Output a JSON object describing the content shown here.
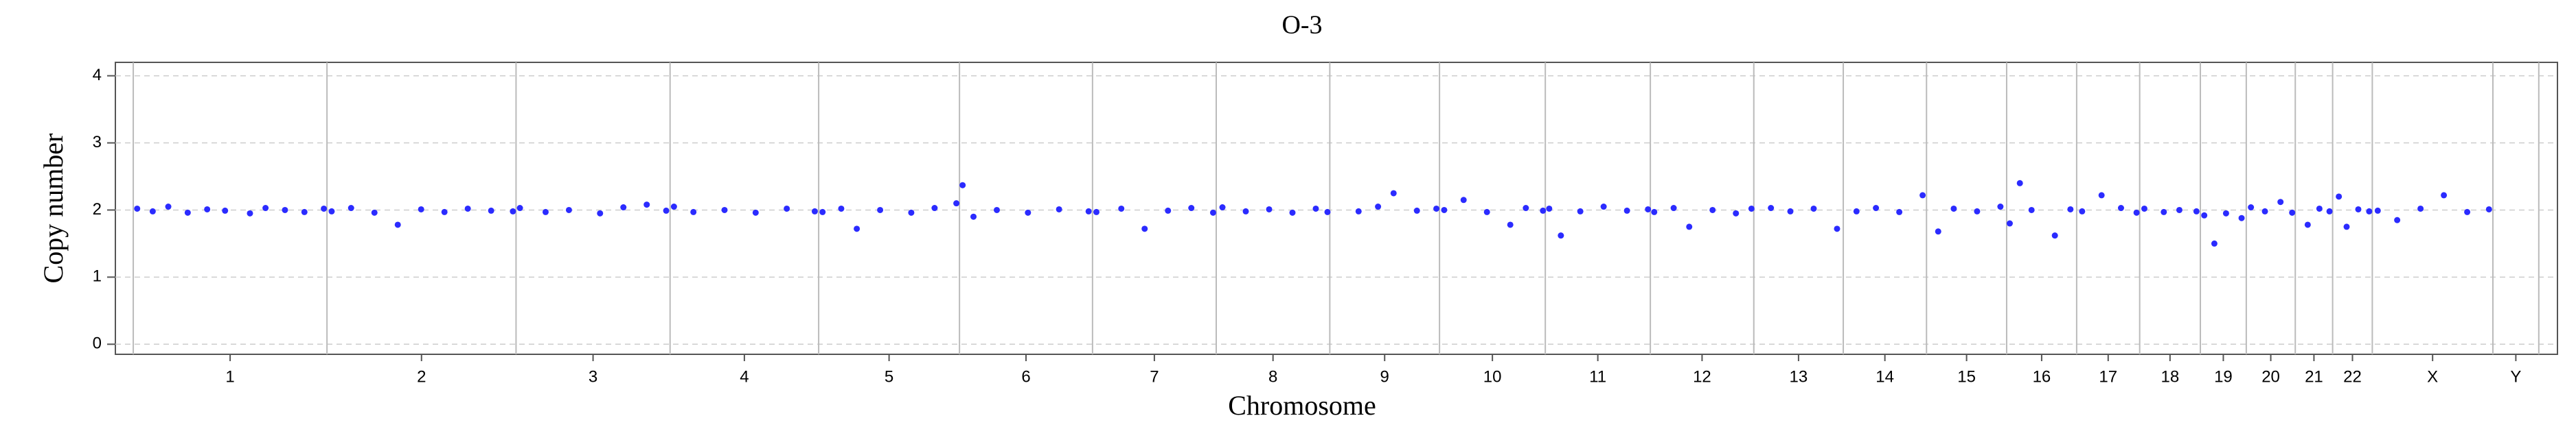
{
  "chart_data": {
    "type": "scatter",
    "title": "O-3",
    "x_label": "Chromosome",
    "y_label": "Copy number",
    "xlim": [
      -23,
      3116
    ],
    "ylim": [
      -0.15,
      4.2
    ],
    "yticks": [
      0,
      1,
      2,
      3,
      4
    ],
    "grid": true,
    "color": "#2b2bff",
    "boundaries": [
      0,
      249,
      492,
      690,
      881,
      1062,
      1233,
      1392,
      1538,
      1679,
      1815,
      1950,
      2083,
      2198,
      2305,
      2408,
      2498,
      2579,
      2657,
      2716,
      2779,
      2827,
      2878,
      3033,
      3092
    ],
    "xticks": [
      {
        "value": 124.5,
        "label": "1"
      },
      {
        "value": 370.5,
        "label": "2"
      },
      {
        "value": 591,
        "label": "3"
      },
      {
        "value": 785.5,
        "label": "4"
      },
      {
        "value": 971.5,
        "label": "5"
      },
      {
        "value": 1147.5,
        "label": "6"
      },
      {
        "value": 1312.5,
        "label": "7"
      },
      {
        "value": 1465,
        "label": "8"
      },
      {
        "value": 1608.5,
        "label": "9"
      },
      {
        "value": 1747,
        "label": "10"
      },
      {
        "value": 1882.5,
        "label": "11"
      },
      {
        "value": 2016.5,
        "label": "12"
      },
      {
        "value": 2140.5,
        "label": "13"
      },
      {
        "value": 2251.5,
        "label": "14"
      },
      {
        "value": 2356.5,
        "label": "15"
      },
      {
        "value": 2453,
        "label": "16"
      },
      {
        "value": 2538.5,
        "label": "17"
      },
      {
        "value": 2618,
        "label": "18"
      },
      {
        "value": 2686.5,
        "label": "19"
      },
      {
        "value": 2747.5,
        "label": "20"
      },
      {
        "value": 2803,
        "label": "21"
      },
      {
        "value": 2852.5,
        "label": "22"
      },
      {
        "value": 2955.5,
        "label": "X"
      },
      {
        "value": 3062.5,
        "label": "Y"
      }
    ],
    "x": [
      5,
      25,
      45,
      70,
      95,
      118,
      150,
      170,
      195,
      220,
      245,
      255,
      280,
      310,
      340,
      370,
      400,
      430,
      460,
      488,
      497,
      530,
      560,
      600,
      630,
      660,
      685,
      695,
      720,
      760,
      800,
      840,
      876,
      886,
      910,
      930,
      960,
      1000,
      1030,
      1058,
      1066,
      1080,
      1110,
      1150,
      1190,
      1228,
      1238,
      1270,
      1300,
      1330,
      1360,
      1388,
      1400,
      1430,
      1460,
      1490,
      1520,
      1535,
      1575,
      1600,
      1620,
      1650,
      1675,
      1685,
      1710,
      1740,
      1770,
      1790,
      1812,
      1820,
      1835,
      1860,
      1890,
      1920,
      1947,
      1955,
      1980,
      2000,
      2030,
      2060,
      2080,
      2105,
      2130,
      2160,
      2190,
      2215,
      2240,
      2270,
      2300,
      2320,
      2340,
      2370,
      2400,
      2412,
      2425,
      2440,
      2470,
      2490,
      2505,
      2530,
      2555,
      2575,
      2585,
      2610,
      2630,
      2652,
      2662,
      2675,
      2690,
      2710,
      2722,
      2740,
      2760,
      2775,
      2795,
      2810,
      2823,
      2835,
      2845,
      2860,
      2874,
      2885,
      2910,
      2940,
      2970,
      3000,
      3028
    ],
    "y": [
      2.02,
      1.98,
      2.05,
      1.96,
      2.01,
      1.99,
      1.95,
      2.03,
      2.0,
      1.97,
      2.02,
      1.98,
      2.03,
      1.96,
      1.78,
      2.01,
      1.97,
      2.02,
      1.99,
      1.98,
      2.03,
      1.97,
      2.0,
      1.95,
      2.04,
      2.08,
      1.99,
      2.05,
      1.97,
      2.0,
      1.96,
      2.02,
      1.98,
      1.97,
      2.02,
      1.72,
      2.0,
      1.96,
      2.03,
      2.1,
      2.37,
      1.9,
      2.0,
      1.96,
      2.01,
      1.98,
      1.97,
      2.02,
      1.72,
      1.99,
      2.03,
      1.96,
      2.04,
      1.98,
      2.01,
      1.96,
      2.02,
      1.97,
      1.98,
      2.05,
      2.25,
      1.99,
      2.02,
      2.0,
      2.15,
      1.97,
      1.78,
      2.03,
      1.99,
      2.02,
      1.62,
      1.98,
      2.05,
      1.99,
      2.01,
      1.97,
      2.03,
      1.75,
      2.0,
      1.95,
      2.02,
      2.03,
      1.98,
      2.02,
      1.72,
      1.98,
      2.03,
      1.97,
      2.22,
      1.68,
      2.02,
      1.98,
      2.05,
      1.8,
      2.4,
      2.0,
      1.62,
      2.01,
      1.98,
      2.22,
      2.03,
      1.96,
      2.02,
      1.97,
      2.0,
      1.98,
      1.92,
      1.5,
      1.95,
      1.88,
      2.04,
      1.98,
      2.12,
      1.96,
      1.78,
      2.02,
      1.98,
      2.2,
      1.75,
      2.01,
      1.98,
      1.99,
      1.85,
      2.02,
      2.22,
      1.97,
      2.01
    ]
  }
}
